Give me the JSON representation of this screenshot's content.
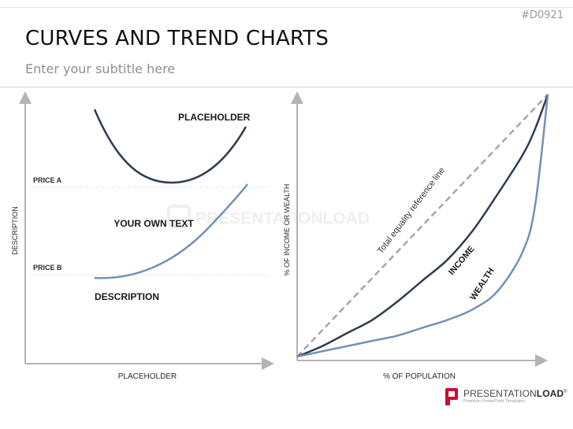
{
  "slide_id": "#D0921",
  "title": "CURVES AND TREND CHARTS",
  "subtitle": "Enter your subtitle here",
  "watermark": "PRESENTATIONLOAD",
  "logo": {
    "name_light": "PRESENTATION",
    "name_bold": "LOAD",
    "registered": "®",
    "tagline": "Premium PowerPoint Templates",
    "accent_color": "#c8102e"
  },
  "colors": {
    "dark_curve": "#2e3d52",
    "light_curve": "#7391b3",
    "reference_line": "#a6a6a6",
    "axis": "#b4b4b4"
  },
  "chart_data": [
    {
      "type": "line",
      "xlabel": "PLACEHOLDER",
      "ylabel": "DESCRIPTION",
      "reference_lines": [
        {
          "label": "PRICE A"
        },
        {
          "label": "PRICE B"
        }
      ],
      "series": [
        {
          "name": "PLACEHOLDER"
        },
        {
          "name": "DESCRIPTION"
        }
      ],
      "annotation": "YOUR OWN TEXT"
    },
    {
      "type": "line",
      "xlabel": "% OF POPULATION",
      "ylabel": "% OF INCOME OR WEALTH",
      "xlim": [
        0,
        100
      ],
      "ylim": [
        0,
        100
      ],
      "reference_line": {
        "label": "Total equality reference line",
        "x": [
          0,
          100
        ],
        "y": [
          0,
          100
        ]
      },
      "series": [
        {
          "name": "INCOME",
          "x": [
            0,
            10,
            20,
            30,
            40,
            50,
            60,
            70,
            80,
            90,
            95,
            100
          ],
          "y": [
            0,
            4,
            9,
            14,
            21,
            29,
            37,
            48,
            62,
            77,
            87,
            100
          ]
        },
        {
          "name": "WEALTH",
          "x": [
            0,
            10,
            20,
            30,
            40,
            50,
            60,
            70,
            80,
            90,
            95,
            100
          ],
          "y": [
            0,
            2,
            4,
            6,
            8,
            11,
            14,
            18,
            25,
            40,
            58,
            100
          ]
        }
      ]
    }
  ]
}
